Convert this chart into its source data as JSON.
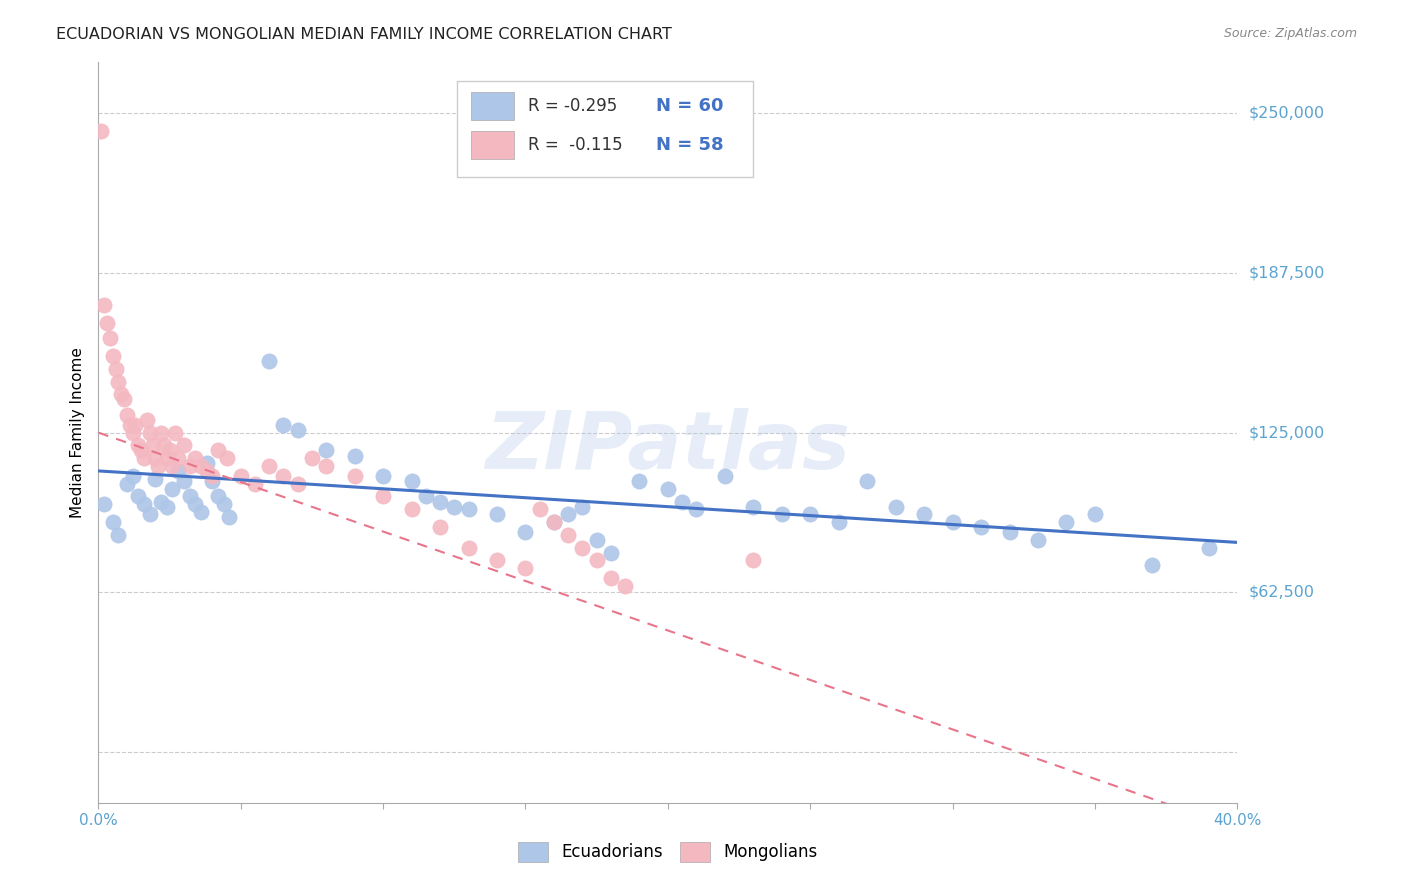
{
  "title": "ECUADORIAN VS MONGOLIAN MEDIAN FAMILY INCOME CORRELATION CHART",
  "source": "Source: ZipAtlas.com",
  "ylabel": "Median Family Income",
  "yticks": [
    0,
    62500,
    125000,
    187500,
    250000
  ],
  "ytick_labels": [
    "",
    "$62,500",
    "$125,000",
    "$187,500",
    "$250,000"
  ],
  "xlim": [
    0.0,
    0.4
  ],
  "ylim": [
    -20000,
    270000
  ],
  "plot_ylim": [
    0,
    270000
  ],
  "ecuadorians_color": "#aec6e8",
  "mongolians_color": "#f4b8c1",
  "ecuadorians_line_color": "#4472c4",
  "mongolians_line_color": "#e8758a",
  "ytick_color": "#5ba3d0",
  "background_color": "#ffffff",
  "grid_color": "#cccccc",
  "watermark": "ZIPatlas",
  "legend_r1": "R = -0.295",
  "legend_n1": "N = 60",
  "legend_r2": "R =  -0.115",
  "legend_n2": "N = 58",
  "ecuadorians_x": [
    0.002,
    0.005,
    0.007,
    0.01,
    0.012,
    0.014,
    0.016,
    0.018,
    0.02,
    0.022,
    0.024,
    0.026,
    0.028,
    0.03,
    0.032,
    0.034,
    0.036,
    0.038,
    0.04,
    0.042,
    0.044,
    0.046,
    0.06,
    0.065,
    0.07,
    0.08,
    0.09,
    0.1,
    0.11,
    0.115,
    0.12,
    0.125,
    0.13,
    0.14,
    0.15,
    0.16,
    0.165,
    0.17,
    0.175,
    0.18,
    0.19,
    0.2,
    0.205,
    0.21,
    0.22,
    0.23,
    0.24,
    0.25,
    0.26,
    0.27,
    0.28,
    0.29,
    0.3,
    0.31,
    0.32,
    0.33,
    0.34,
    0.35,
    0.37,
    0.39
  ],
  "ecuadorians_y": [
    97000,
    90000,
    85000,
    105000,
    108000,
    100000,
    97000,
    93000,
    107000,
    98000,
    96000,
    103000,
    110000,
    106000,
    100000,
    97000,
    94000,
    113000,
    106000,
    100000,
    97000,
    92000,
    153000,
    128000,
    126000,
    118000,
    116000,
    108000,
    106000,
    100000,
    98000,
    96000,
    95000,
    93000,
    86000,
    90000,
    93000,
    96000,
    83000,
    78000,
    106000,
    103000,
    98000,
    95000,
    108000,
    96000,
    93000,
    93000,
    90000,
    106000,
    96000,
    93000,
    90000,
    88000,
    86000,
    83000,
    90000,
    93000,
    73000,
    80000
  ],
  "mongolians_x": [
    0.001,
    0.002,
    0.003,
    0.004,
    0.005,
    0.006,
    0.007,
    0.008,
    0.009,
    0.01,
    0.011,
    0.012,
    0.013,
    0.014,
    0.015,
    0.016,
    0.017,
    0.018,
    0.019,
    0.02,
    0.021,
    0.022,
    0.023,
    0.024,
    0.025,
    0.026,
    0.027,
    0.028,
    0.03,
    0.032,
    0.034,
    0.036,
    0.038,
    0.04,
    0.042,
    0.045,
    0.05,
    0.055,
    0.06,
    0.065,
    0.07,
    0.075,
    0.08,
    0.09,
    0.1,
    0.11,
    0.12,
    0.13,
    0.14,
    0.15,
    0.155,
    0.16,
    0.165,
    0.17,
    0.175,
    0.18,
    0.185,
    0.23
  ],
  "mongolians_y": [
    243000,
    175000,
    168000,
    162000,
    155000,
    150000,
    145000,
    140000,
    138000,
    132000,
    128000,
    125000,
    128000,
    120000,
    118000,
    115000,
    130000,
    125000,
    120000,
    115000,
    112000,
    125000,
    120000,
    115000,
    118000,
    112000,
    125000,
    115000,
    120000,
    112000,
    115000,
    112000,
    110000,
    108000,
    118000,
    115000,
    108000,
    105000,
    112000,
    108000,
    105000,
    115000,
    112000,
    108000,
    100000,
    95000,
    88000,
    80000,
    75000,
    72000,
    95000,
    90000,
    85000,
    80000,
    75000,
    68000,
    65000,
    75000
  ]
}
